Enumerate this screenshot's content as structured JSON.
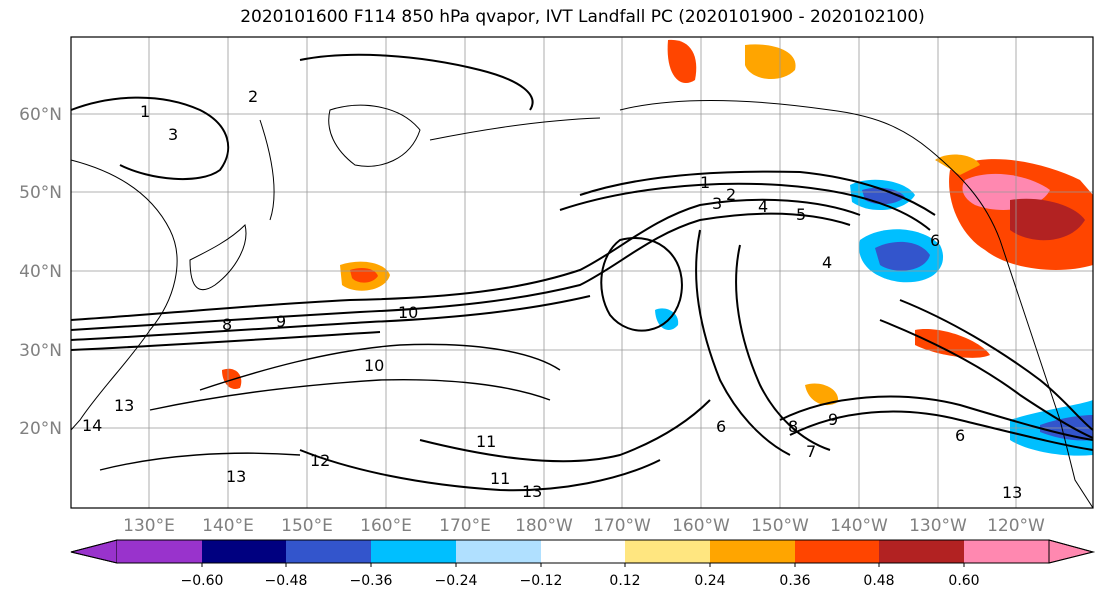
{
  "title": "2020101600 F114 850 hPa qvapor, IVT Landfall PC (2020101900 - 2020102100)",
  "map": {
    "lat_labels": [
      "60°N",
      "50°N",
      "40°N",
      "30°N",
      "20°N"
    ],
    "lon_labels": [
      "130°E",
      "140°E",
      "150°E",
      "160°E",
      "170°E",
      "180°W",
      "170°W",
      "160°W",
      "150°W",
      "140°W",
      "130°W",
      "120°W"
    ],
    "contour_labels": [
      "1",
      "2",
      "3",
      "1",
      "2",
      "3",
      "4",
      "5",
      "6",
      "4",
      "8",
      "9",
      "10",
      "10",
      "11",
      "11",
      "12",
      "13",
      "13",
      "13",
      "13",
      "14",
      "6",
      "7",
      "8",
      "9",
      "6"
    ]
  },
  "colorbar": {
    "ticks": [
      "−0.60",
      "−0.48",
      "−0.36",
      "−0.24",
      "−0.12",
      "0.12",
      "0.24",
      "0.36",
      "0.48",
      "0.60"
    ],
    "colors": [
      "#9933cc",
      "#000080",
      "#3355cc",
      "#00bfff",
      "#b0e0ff",
      "#ffffff",
      "#ffe680",
      "#ffa500",
      "#ff4500",
      "#b22222",
      "#ff88b0"
    ]
  }
}
